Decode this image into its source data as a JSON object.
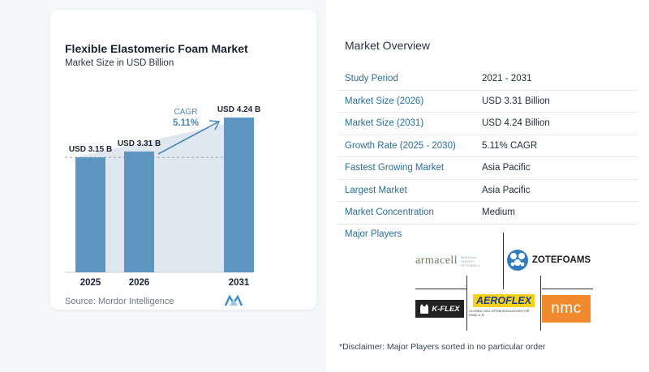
{
  "chart": {
    "title": "Flexible Elastomeric Foam Market",
    "subtitle": "Market Size in USD Billion",
    "source": "Source:  Mordor Intelligence",
    "cagr_label": "CAGR",
    "cagr_value": "5.11%"
  },
  "chart_data": {
    "type": "bar",
    "categories": [
      "2025",
      "2026",
      "2031"
    ],
    "values": [
      3.15,
      3.31,
      4.24
    ],
    "data_labels": [
      "USD 3.15 B",
      "USD 3.31 B",
      "USD 4.24 B"
    ],
    "title": "Flexible Elastomeric Foam Market",
    "subtitle": "Market Size in USD Billion",
    "ylim": [
      0,
      4.24
    ],
    "grid": false,
    "colors": {
      "bar": "#5d97c1",
      "area": "#dfe8f1",
      "arrow": "#4a88b8",
      "reference_line": "#9aa6b2"
    }
  },
  "overview": {
    "title": "Market Overview",
    "rows": [
      {
        "key": "Study Period",
        "value": "2021 - 2031"
      },
      {
        "key": "Market Size (2026)",
        "value": "USD 3.31 Billion"
      },
      {
        "key": "Market Size (2031)",
        "value": "USD 4.24 Billion"
      },
      {
        "key": "Growth Rate (2025 - 2030)",
        "value": "5.11% CAGR"
      },
      {
        "key": "Fastest Growing Market",
        "value": "Asia Pacific"
      },
      {
        "key": "Largest Market",
        "value": "Asia Pacific"
      },
      {
        "key": "Market Concentration",
        "value": "Medium"
      }
    ]
  },
  "players": {
    "title": "Major Players",
    "logos": [
      {
        "name": "armacell",
        "tagline": "BRINGING ENERGY EFFICIENCY"
      },
      {
        "name": "ZOTEFOAMS"
      },
      {
        "name": "K-FLEX"
      },
      {
        "name": "AEROFLEX",
        "tagline": "CLOSED CELL EPDM INSULATION FOR HVAC & R"
      },
      {
        "name": "nmc"
      }
    ],
    "disclaimer": "*Disclaimer: Major Players sorted in no particular order"
  }
}
